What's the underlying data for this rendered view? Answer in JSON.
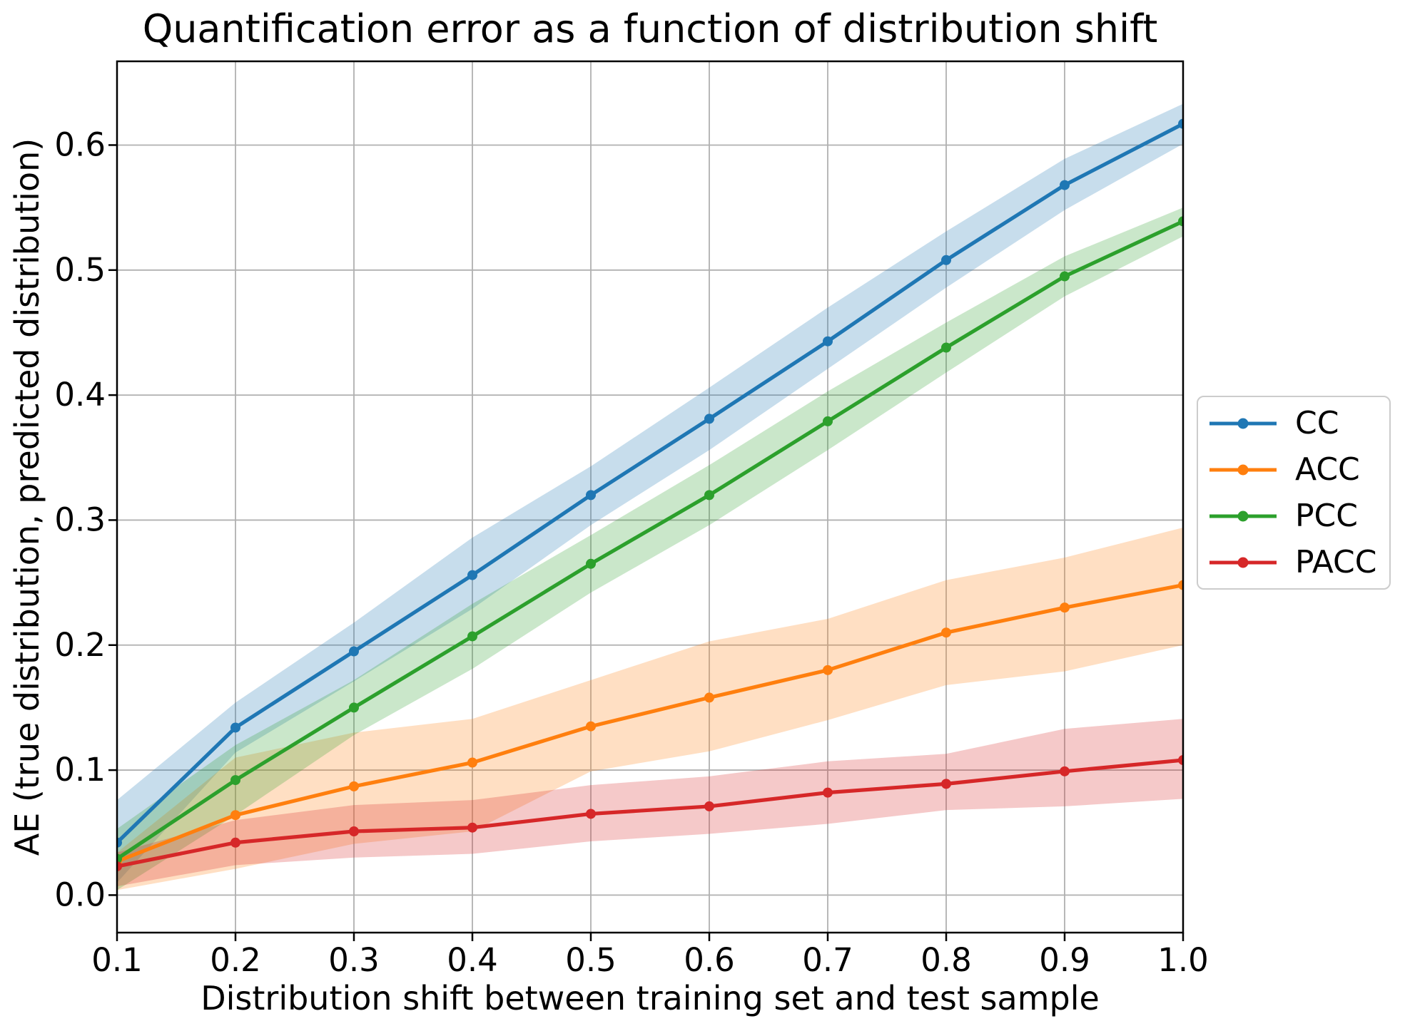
{
  "figure": {
    "title": "Quantification error as a function of distribution shift",
    "background": "#ffffff",
    "grid_color": "#b0b0b0",
    "spine_color": "#000000",
    "legend_border_color": "#cccccc"
  },
  "chart_data": {
    "type": "line",
    "title": "Quantification error as a function of distribution shift",
    "xlabel": "Distribution shift between training set and test sample",
    "ylabel": "AE (true distribution, predicted distribution)",
    "xlim": [
      0.1,
      1.0
    ],
    "ylim": [
      -0.03,
      0.667
    ],
    "grid": true,
    "legend_position": "center-right-outside",
    "x_ticks": [
      "0.1",
      "0.2",
      "0.3",
      "0.4",
      "0.5",
      "0.6",
      "0.7",
      "0.8",
      "0.9",
      "1.0"
    ],
    "y_ticks": [
      "0.0",
      "0.1",
      "0.2",
      "0.3",
      "0.4",
      "0.5",
      "0.6"
    ],
    "x": [
      0.1,
      0.2,
      0.3,
      0.4,
      0.5,
      0.6,
      0.7,
      0.8,
      0.9,
      1.0
    ],
    "band_opacity": 0.25,
    "series": [
      {
        "name": "CC",
        "color": "#1f77b4",
        "values": [
          0.042,
          0.134,
          0.195,
          0.256,
          0.32,
          0.381,
          0.443,
          0.508,
          0.568,
          0.617
        ],
        "band_upper": [
          0.076,
          0.154,
          0.218,
          0.286,
          0.343,
          0.406,
          0.47,
          0.531,
          0.589,
          0.633
        ],
        "band_lower": [
          0.01,
          0.114,
          0.171,
          0.229,
          0.296,
          0.356,
          0.421,
          0.486,
          0.548,
          0.601
        ]
      },
      {
        "name": "ACC",
        "color": "#ff7f0e",
        "values": [
          0.027,
          0.064,
          0.087,
          0.106,
          0.135,
          0.158,
          0.18,
          0.21,
          0.23,
          0.248
        ],
        "band_upper": [
          0.034,
          0.11,
          0.13,
          0.141,
          0.172,
          0.203,
          0.221,
          0.252,
          0.27,
          0.294
        ],
        "band_lower": [
          0.004,
          0.021,
          0.041,
          0.051,
          0.099,
          0.115,
          0.14,
          0.168,
          0.179,
          0.2
        ]
      },
      {
        "name": "PCC",
        "color": "#2ca02c",
        "values": [
          0.029,
          0.092,
          0.15,
          0.207,
          0.265,
          0.32,
          0.379,
          0.438,
          0.495,
          0.539
        ],
        "band_upper": [
          0.053,
          0.12,
          0.172,
          0.233,
          0.288,
          0.344,
          0.403,
          0.458,
          0.511,
          0.55
        ],
        "band_lower": [
          0.004,
          0.064,
          0.128,
          0.181,
          0.242,
          0.296,
          0.356,
          0.418,
          0.479,
          0.527
        ]
      },
      {
        "name": "PACC",
        "color": "#d62728",
        "values": [
          0.023,
          0.042,
          0.051,
          0.054,
          0.065,
          0.071,
          0.082,
          0.089,
          0.099,
          0.108
        ],
        "band_upper": [
          0.034,
          0.06,
          0.072,
          0.076,
          0.088,
          0.095,
          0.107,
          0.113,
          0.133,
          0.141
        ],
        "band_lower": [
          0.007,
          0.024,
          0.03,
          0.033,
          0.043,
          0.049,
          0.057,
          0.068,
          0.071,
          0.077
        ]
      }
    ]
  },
  "legend": {
    "items": [
      "CC",
      "ACC",
      "PCC",
      "PACC"
    ]
  }
}
